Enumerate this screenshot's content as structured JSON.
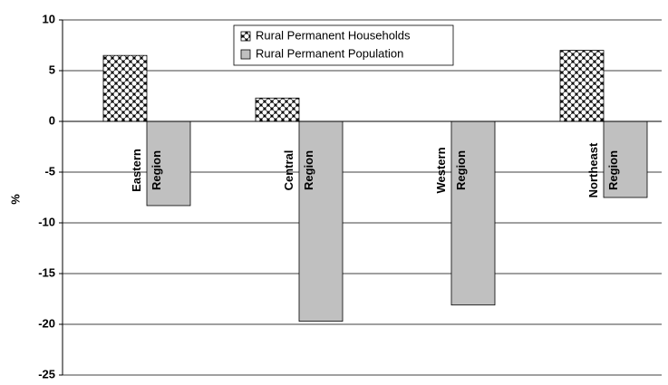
{
  "chart_data": {
    "type": "bar",
    "y_label": "%",
    "categories": [
      "Eastern Region",
      "Central Region",
      "Western Region",
      "Northeast Region"
    ],
    "series": [
      {
        "name": "Rural Permanent Households",
        "color": "#000000",
        "values": [
          6.5,
          2.3,
          0,
          7.0
        ]
      },
      {
        "name": "Rural Permanent Population",
        "color": "#c0c0c0",
        "values": [
          -8.3,
          -19.7,
          -18.1,
          -7.5
        ]
      }
    ],
    "ylim": [
      -25,
      10
    ],
    "yticks": [
      -25,
      -20,
      -15,
      -10,
      -5,
      0,
      5,
      10
    ],
    "grid": true,
    "legend": "top"
  }
}
